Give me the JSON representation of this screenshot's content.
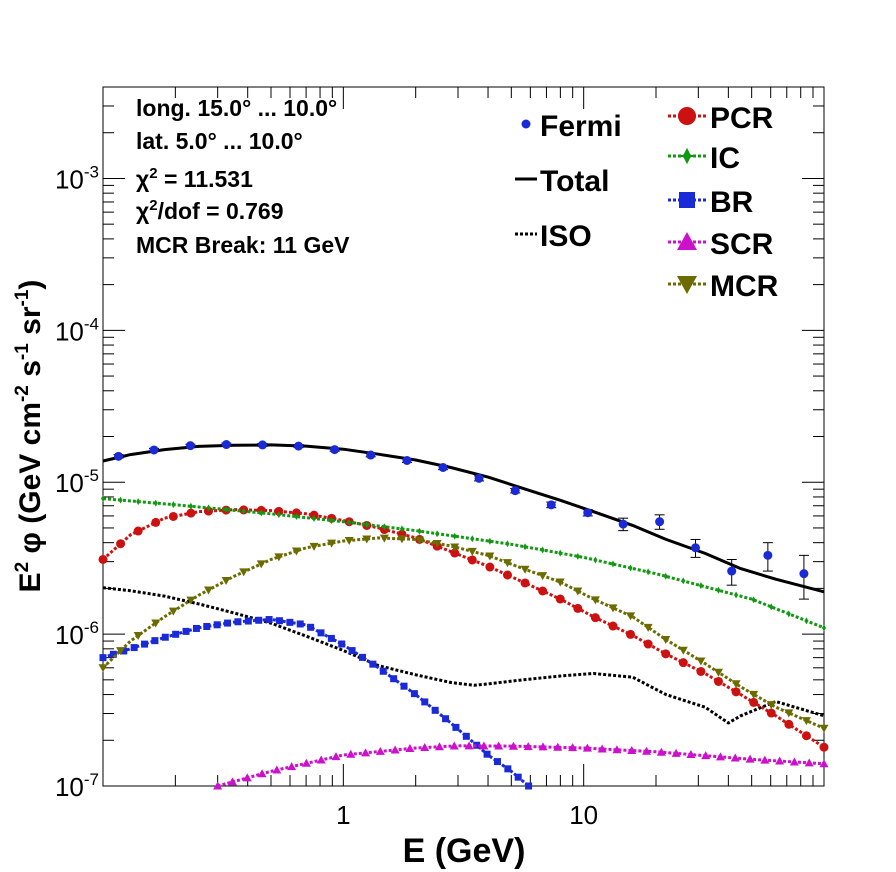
{
  "chart_data": {
    "type": "scatter",
    "title": "",
    "xlabel": "E (GeV)",
    "ylabel": "E² φ (GeV cm⁻² s⁻¹ sr⁻¹)",
    "ylabel_parts": [
      "E",
      "2",
      " φ (GeV cm",
      "-2",
      " s",
      "-1",
      " sr",
      "-1",
      ")"
    ],
    "xscale": "log",
    "yscale": "log",
    "xlim": [
      0.1,
      100
    ],
    "ylim": [
      1e-07,
      0.004
    ],
    "xticks": [
      {
        "v": 1,
        "label": "1"
      },
      {
        "v": 10,
        "label": "10"
      }
    ],
    "yticks": [
      {
        "v": 1e-07,
        "base": "10",
        "exp": "-7"
      },
      {
        "v": 1e-06,
        "base": "10",
        "exp": "-6"
      },
      {
        "v": 1e-05,
        "base": "10",
        "exp": "-5"
      },
      {
        "v": 0.0001,
        "base": "10",
        "exp": "-4"
      },
      {
        "v": 0.001,
        "base": "10",
        "exp": "-3"
      }
    ],
    "info_lines": [
      {
        "main": "long. 15.0° ... 10.0°"
      },
      {
        "main": "lat. 5.0° ... 10.0°"
      },
      {
        "pre": "χ",
        "sup": "2",
        "post": " = 11.531"
      },
      {
        "pre": "χ",
        "sup": "2",
        "post": "/dof = 0.769"
      },
      {
        "main": "MCR Break: 11 GeV"
      }
    ],
    "legend_placement": "top-right",
    "legend_left": [
      "Fermi",
      "Total",
      "ISO"
    ],
    "legend_right": [
      "PCR",
      "IC",
      "BR",
      "SCR",
      "MCR"
    ],
    "data_points": {
      "name": "Fermi",
      "color": "#1a2ad6",
      "x": [
        0.116,
        0.163,
        0.231,
        0.326,
        0.461,
        0.651,
        0.92,
        1.3,
        1.84,
        2.6,
        3.67,
        5.19,
        7.33,
        10.4,
        14.6,
        20.7,
        29.2,
        41.3,
        58.4,
        82.5
      ],
      "y": [
        1.48e-05,
        1.63e-05,
        1.74e-05,
        1.77e-05,
        1.76e-05,
        1.73e-05,
        1.64e-05,
        1.51e-05,
        1.39e-05,
        1.25e-05,
        1.06e-05,
        8.8e-06,
        7.1e-06,
        6.3e-06,
        5.3e-06,
        5.5e-06,
        3.7e-06,
        2.6e-06,
        3.3e-06,
        2.5e-06
      ],
      "err": [
        4e-07,
        4e-07,
        4e-07,
        4e-07,
        4e-07,
        4e-07,
        4e-07,
        4e-07,
        4e-07,
        4e-07,
        4e-07,
        3e-07,
        3e-07,
        3e-07,
        5e-07,
        6e-07,
        5e-07,
        5e-07,
        7e-07,
        8e-07
      ]
    },
    "series": [
      {
        "name": "Total",
        "color": "#000000",
        "style": "solid",
        "marker": "none",
        "x": [
          0.1,
          0.13,
          0.18,
          0.25,
          0.35,
          0.5,
          0.7,
          1.0,
          1.4,
          2.0,
          2.8,
          4.0,
          5.6,
          8.0,
          11,
          16,
          22,
          32,
          45,
          63,
          100
        ],
        "y": [
          1.38e-05,
          1.52e-05,
          1.64e-05,
          1.72e-05,
          1.75e-05,
          1.76e-05,
          1.73e-05,
          1.65e-05,
          1.53e-05,
          1.4e-05,
          1.25e-05,
          1.08e-05,
          9.1e-06,
          7.6e-06,
          6.4e-06,
          5.2e-06,
          4.2e-06,
          3.4e-06,
          2.7e-06,
          2.3e-06,
          1.9e-06
        ]
      },
      {
        "name": "ISO",
        "color": "#000000",
        "style": "dotted",
        "marker": "none",
        "x": [
          0.1,
          0.13,
          0.18,
          0.25,
          0.35,
          0.5,
          0.7,
          1.0,
          1.4,
          2.0,
          2.8,
          3.5,
          4.0,
          5.6,
          8.0,
          11,
          16,
          22,
          32,
          40,
          45,
          63,
          100
        ],
        "y": [
          2.02e-06,
          1.93e-06,
          1.78e-06,
          1.58e-06,
          1.38e-06,
          1.18e-06,
          9.7e-07,
          7.8e-07,
          6.2e-07,
          5.4e-07,
          4.8e-07,
          4.6e-07,
          4.7e-07,
          5e-07,
          5.3e-07,
          5.5e-07,
          5.2e-07,
          4e-07,
          3.3e-07,
          2.6e-07,
          2.9e-07,
          3.6e-07,
          2.9e-07
        ]
      },
      {
        "name": "PCR",
        "color": "#cc1111",
        "style": "dotted",
        "marker": "circle",
        "x": [
          0.1,
          0.13,
          0.18,
          0.25,
          0.35,
          0.5,
          0.7,
          1.0,
          1.4,
          2.0,
          2.8,
          4.0,
          5.6,
          8.0,
          11,
          16,
          22,
          32,
          45,
          63,
          100
        ],
        "y": [
          3.1e-06,
          4.5e-06,
          5.8e-06,
          6.4e-06,
          6.6e-06,
          6.5e-06,
          6.2e-06,
          5.6e-06,
          5e-06,
          4.3e-06,
          3.5e-06,
          2.8e-06,
          2.2e-06,
          1.7e-06,
          1.3e-06,
          9.8e-07,
          7.4e-07,
          5.5e-07,
          4e-07,
          2.9e-07,
          1.8e-07
        ]
      },
      {
        "name": "IC",
        "color": "#119911",
        "style": "dotted",
        "marker": "star",
        "x": [
          0.1,
          0.2,
          0.5,
          1.0,
          2.0,
          5.0,
          10,
          20,
          50,
          100
        ],
        "y": [
          7.8e-06,
          7.1e-06,
          6.2e-06,
          5.5e-06,
          4.8e-06,
          3.9e-06,
          3.2e-06,
          2.5e-06,
          1.7e-06,
          1.1e-06
        ]
      },
      {
        "name": "BR",
        "color": "#1a2ad6",
        "style": "dotted",
        "marker": "square",
        "x": [
          0.1,
          0.13,
          0.18,
          0.25,
          0.35,
          0.5,
          0.7,
          1.0,
          1.4,
          2.0,
          2.8,
          4.0,
          5.0,
          5.9
        ],
        "y": [
          7e-07,
          8e-07,
          9.5e-07,
          1.1e-06,
          1.2e-06,
          1.25e-06,
          1.15e-06,
          8.5e-07,
          6e-07,
          4e-07,
          2.6e-07,
          1.6e-07,
          1.25e-07,
          1e-07
        ]
      },
      {
        "name": "SCR",
        "color": "#cc11cc",
        "style": "dotted",
        "marker": "triangle-up",
        "x": [
          0.3,
          0.5,
          1.0,
          2.0,
          3.0,
          5.0,
          10,
          20,
          50,
          100
        ],
        "y": [
          1e-07,
          1.25e-07,
          1.6e-07,
          1.78e-07,
          1.84e-07,
          1.83e-07,
          1.78e-07,
          1.68e-07,
          1.5e-07,
          1.4e-07
        ]
      },
      {
        "name": "MCR",
        "color": "#6b6b00",
        "style": "dotted",
        "marker": "triangle-down",
        "x": [
          0.1,
          0.13,
          0.18,
          0.25,
          0.35,
          0.5,
          0.7,
          1.0,
          1.4,
          2.0,
          2.8,
          4.0,
          5.6,
          8.0,
          11,
          16,
          22,
          32,
          45,
          63,
          100
        ],
        "y": [
          6e-07,
          9e-07,
          1.3e-06,
          1.8e-06,
          2.4e-06,
          3.1e-06,
          3.7e-06,
          4.1e-06,
          4.3e-06,
          4.2e-06,
          3.8e-06,
          3.3e-06,
          2.7e-06,
          2.2e-06,
          1.7e-06,
          1.3e-06,
          9.2e-07,
          6.4e-07,
          4.5e-07,
          3.3e-07,
          2.4e-07
        ]
      }
    ]
  }
}
